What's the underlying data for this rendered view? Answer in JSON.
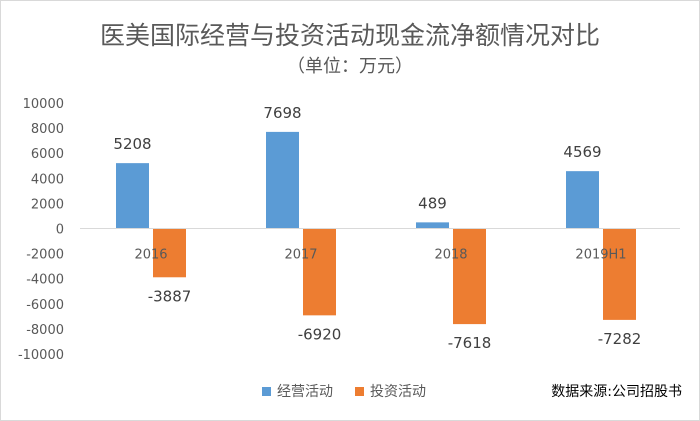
{
  "chart_data": {
    "type": "bar",
    "title": "医美国际经营与投资活动现金流净额情况对比",
    "subtitle": "（单位：万元）",
    "categories": [
      "2016",
      "2017",
      "2018",
      "2019H1"
    ],
    "series": [
      {
        "name": "经营活动",
        "color": "#5b9bd5",
        "values": [
          5208,
          7698,
          489,
          4569
        ]
      },
      {
        "name": "投资活动",
        "color": "#ed7d31",
        "values": [
          -3887,
          -6920,
          -7618,
          -7282
        ]
      }
    ],
    "ylim": [
      -10000,
      10000
    ],
    "yticks": [
      10000,
      8000,
      6000,
      4000,
      2000,
      0,
      -2000,
      -4000,
      -6000,
      -8000,
      -10000
    ],
    "grid": false,
    "legend_position": "bottom",
    "source": "数据来源:公司招股书"
  }
}
